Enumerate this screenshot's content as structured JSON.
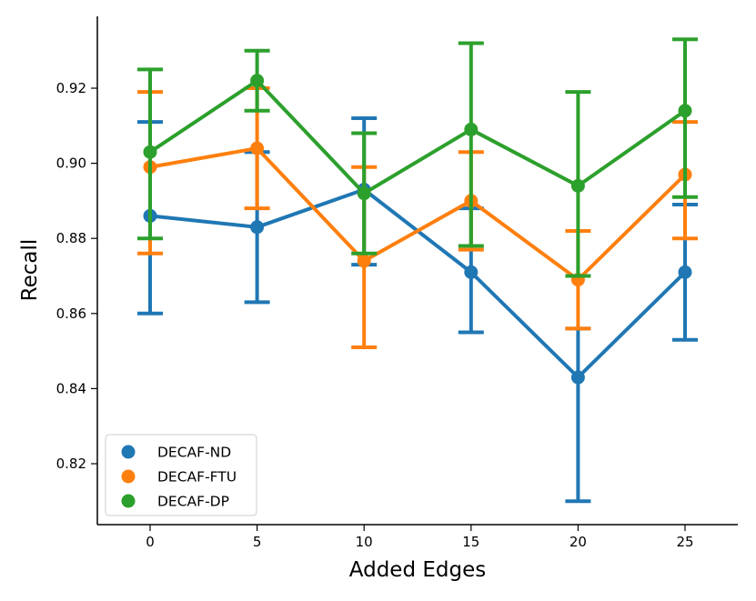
{
  "chart_data": {
    "type": "line",
    "xlabel": "Added Edges",
    "ylabel": "Recall",
    "categories": [
      "0",
      "5",
      "10",
      "15",
      "20",
      "25"
    ],
    "ylim": [
      0.809,
      0.937
    ],
    "yticks": [
      "0.82",
      "0.84",
      "0.86",
      "0.88",
      "0.90",
      "0.92"
    ],
    "ytick_values": [
      0.82,
      0.84,
      0.86,
      0.88,
      0.9,
      0.92
    ],
    "legend_position": "lower-left",
    "grid": false,
    "series": [
      {
        "name": "DECAF-ND",
        "color": "#1f77b4",
        "values": [
          0.886,
          0.883,
          0.893,
          0.871,
          0.843,
          0.871
        ],
        "err_low": [
          0.86,
          0.863,
          0.873,
          0.855,
          0.81,
          0.853
        ],
        "err_high": [
          0.911,
          0.903,
          0.912,
          0.888,
          0.856,
          0.889
        ]
      },
      {
        "name": "DECAF-FTU",
        "color": "#ff7f0e",
        "values": [
          0.899,
          0.904,
          0.874,
          0.89,
          0.869,
          0.897
        ],
        "err_low": [
          0.876,
          0.888,
          0.851,
          0.877,
          0.856,
          0.88
        ],
        "err_high": [
          0.919,
          0.92,
          0.899,
          0.903,
          0.882,
          0.911
        ]
      },
      {
        "name": "DECAF-DP",
        "color": "#2ca02c",
        "values": [
          0.903,
          0.922,
          0.892,
          0.909,
          0.894,
          0.914
        ],
        "err_low": [
          0.88,
          0.914,
          0.876,
          0.878,
          0.87,
          0.891
        ],
        "err_high": [
          0.925,
          0.93,
          0.908,
          0.932,
          0.919,
          0.933
        ]
      }
    ]
  }
}
